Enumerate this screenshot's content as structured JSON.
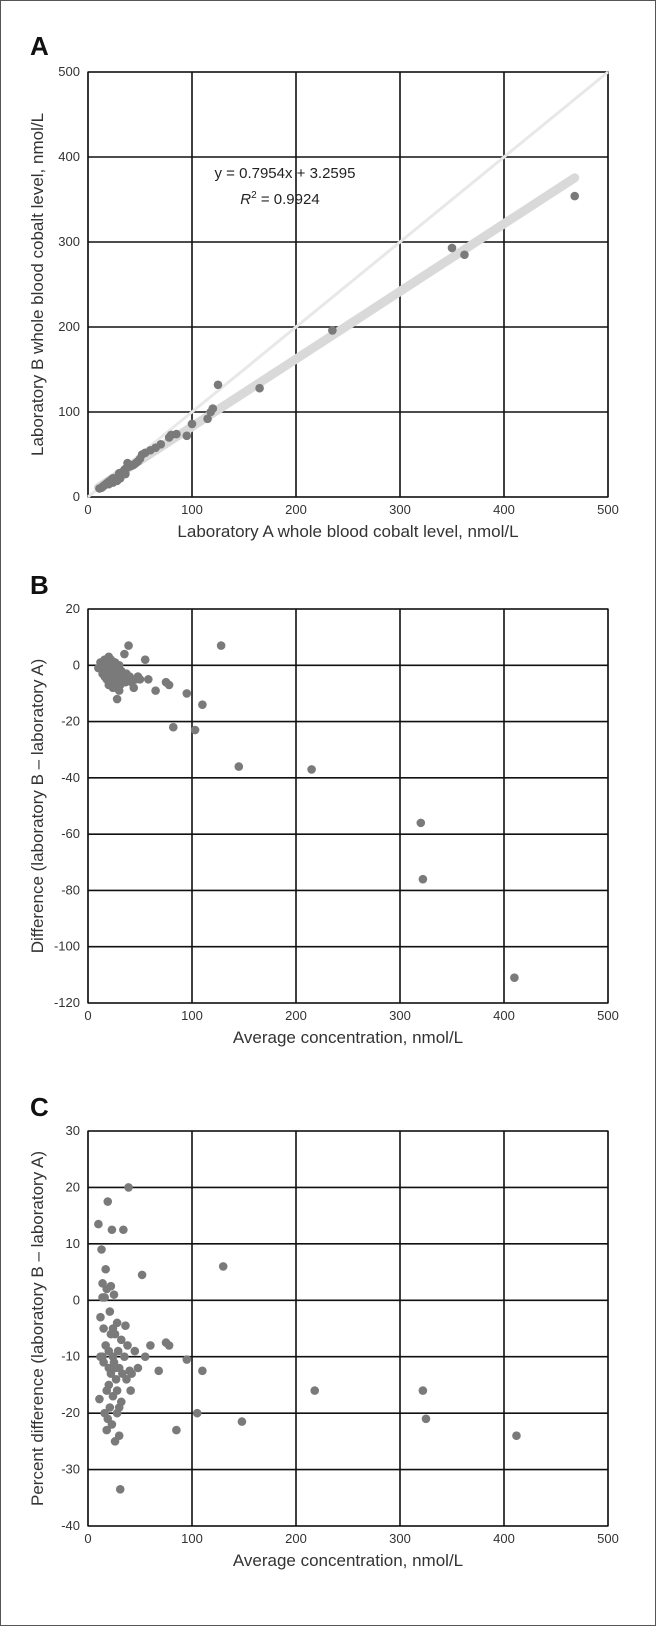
{
  "chart_data": [
    {
      "panel": "A",
      "type": "scatter",
      "xlabel": "Laboratory A whole blood cobalt level, nmol/L",
      "ylabel": "Laboratory B whole blood cobalt level, nmol/L",
      "xlim": [
        0,
        500
      ],
      "ylim": [
        0,
        500
      ],
      "xticks": [
        0,
        100,
        200,
        300,
        400,
        500
      ],
      "yticks": [
        0,
        100,
        200,
        300,
        400,
        500
      ],
      "grid": true,
      "annotation": {
        "equation": "y = 0.7954x + 3.2595",
        "r2_label": "R",
        "r2_sup": "2",
        "r2_value": " = 0.9924"
      },
      "identity_line": [
        [
          0,
          0
        ],
        [
          500,
          500
        ]
      ],
      "fit_line": {
        "slope": 0.7954,
        "intercept": 3.2595,
        "x_range": [
          10,
          468
        ]
      },
      "points": [
        [
          11,
          10
        ],
        [
          13,
          11
        ],
        [
          14,
          12
        ],
        [
          15,
          13
        ],
        [
          16,
          14
        ],
        [
          17,
          15
        ],
        [
          18,
          16
        ],
        [
          19,
          17
        ],
        [
          20,
          18
        ],
        [
          21,
          18
        ],
        [
          22,
          20
        ],
        [
          23,
          20
        ],
        [
          25,
          19
        ],
        [
          26,
          21
        ],
        [
          27,
          22
        ],
        [
          28,
          23
        ],
        [
          29,
          24
        ],
        [
          30,
          25
        ],
        [
          31,
          26
        ],
        [
          33,
          28
        ],
        [
          34,
          30
        ],
        [
          35,
          32
        ],
        [
          36,
          33
        ],
        [
          37,
          34
        ],
        [
          38,
          40
        ],
        [
          40,
          36
        ],
        [
          42,
          37
        ],
        [
          44,
          38
        ],
        [
          46,
          40
        ],
        [
          48,
          42
        ],
        [
          50,
          45
        ],
        [
          52,
          50
        ],
        [
          55,
          52
        ],
        [
          60,
          55
        ],
        [
          65,
          58
        ],
        [
          70,
          62
        ],
        [
          78,
          70
        ],
        [
          80,
          73
        ],
        [
          85,
          74
        ],
        [
          95,
          72
        ],
        [
          100,
          86
        ],
        [
          115,
          92
        ],
        [
          118,
          100
        ],
        [
          120,
          104
        ],
        [
          125,
          132
        ],
        [
          165,
          128
        ],
        [
          235,
          196
        ],
        [
          350,
          293
        ],
        [
          362,
          285
        ],
        [
          468,
          354
        ],
        [
          20,
          15
        ],
        [
          24,
          17
        ],
        [
          28,
          19
        ],
        [
          31,
          22
        ],
        [
          36,
          27
        ],
        [
          24,
          22
        ],
        [
          30,
          28
        ]
      ]
    },
    {
      "panel": "B",
      "type": "scatter",
      "xlabel": "Average concentration, nmol/L",
      "ylabel": "Difference (laboratory B – laboratory A)",
      "xlim": [
        0,
        500
      ],
      "ylim": [
        -120,
        20
      ],
      "xticks": [
        0,
        100,
        200,
        300,
        400,
        500
      ],
      "yticks": [
        -120,
        -100,
        -80,
        -60,
        -40,
        -20,
        0,
        20
      ],
      "grid": true,
      "points": [
        [
          10,
          -1
        ],
        [
          12,
          1
        ],
        [
          14,
          0
        ],
        [
          15,
          -2
        ],
        [
          16,
          2
        ],
        [
          17,
          1
        ],
        [
          18,
          -3
        ],
        [
          19,
          0
        ],
        [
          20,
          3
        ],
        [
          21,
          -1
        ],
        [
          22,
          2
        ],
        [
          23,
          -4
        ],
        [
          24,
          0
        ],
        [
          25,
          -2
        ],
        [
          26,
          1
        ],
        [
          27,
          -5
        ],
        [
          28,
          -3
        ],
        [
          29,
          -6
        ],
        [
          30,
          0
        ],
        [
          31,
          -7
        ],
        [
          32,
          -2
        ],
        [
          33,
          -5
        ],
        [
          34,
          -4
        ],
        [
          35,
          4
        ],
        [
          36,
          -6
        ],
        [
          37,
          -3
        ],
        [
          38,
          -5
        ],
        [
          39,
          7
        ],
        [
          40,
          -4
        ],
        [
          42,
          -6
        ],
        [
          44,
          -8
        ],
        [
          46,
          -5
        ],
        [
          48,
          -4
        ],
        [
          50,
          -5
        ],
        [
          55,
          2
        ],
        [
          58,
          -5
        ],
        [
          65,
          -9
        ],
        [
          75,
          -6
        ],
        [
          78,
          -7
        ],
        [
          82,
          -22
        ],
        [
          95,
          -10
        ],
        [
          103,
          -23
        ],
        [
          110,
          -14
        ],
        [
          128,
          7
        ],
        [
          145,
          -36
        ],
        [
          215,
          -37
        ],
        [
          320,
          -56
        ],
        [
          322,
          -76
        ],
        [
          410,
          -111
        ],
        [
          18,
          -5
        ],
        [
          20,
          -7
        ],
        [
          22,
          -6
        ],
        [
          24,
          -8
        ],
        [
          26,
          -7
        ],
        [
          28,
          -12
        ],
        [
          30,
          -9
        ],
        [
          14,
          -3
        ],
        [
          16,
          -4
        ]
      ]
    },
    {
      "panel": "C",
      "type": "scatter",
      "xlabel": "Average concentration, nmol/L",
      "ylabel": "Percent difference (laboratory B – laboratory A)",
      "xlim": [
        0,
        500
      ],
      "ylim": [
        -40,
        30
      ],
      "xticks": [
        0,
        100,
        200,
        300,
        400,
        500
      ],
      "yticks": [
        -40,
        -30,
        -20,
        -10,
        0,
        10,
        20,
        30
      ],
      "grid": true,
      "points": [
        [
          10,
          13.5
        ],
        [
          12,
          -3
        ],
        [
          13,
          9
        ],
        [
          14,
          3
        ],
        [
          15,
          -5
        ],
        [
          15,
          -11
        ],
        [
          16,
          0.5
        ],
        [
          17,
          5.5
        ],
        [
          17,
          -8
        ],
        [
          18,
          2
        ],
        [
          18,
          -16
        ],
        [
          19,
          17.5
        ],
        [
          19,
          -21
        ],
        [
          20,
          -9
        ],
        [
          20,
          -12
        ],
        [
          21,
          -2
        ],
        [
          21,
          -19
        ],
        [
          22,
          2.5
        ],
        [
          22,
          -13
        ],
        [
          23,
          12.5
        ],
        [
          23,
          -22
        ],
        [
          24,
          -5
        ],
        [
          24,
          -17
        ],
        [
          25,
          1
        ],
        [
          25,
          -11
        ],
        [
          26,
          -6
        ],
        [
          26,
          -25
        ],
        [
          27,
          -14
        ],
        [
          28,
          -4
        ],
        [
          28,
          -20
        ],
        [
          29,
          -9
        ],
        [
          30,
          -12
        ],
        [
          30,
          -24
        ],
        [
          31,
          -33.5
        ],
        [
          32,
          -7
        ],
        [
          32,
          -18
        ],
        [
          33,
          -13
        ],
        [
          34,
          12.5
        ],
        [
          35,
          -10
        ],
        [
          36,
          -4.5
        ],
        [
          37,
          -14
        ],
        [
          38,
          -8
        ],
        [
          39,
          20
        ],
        [
          40,
          -12.5
        ],
        [
          41,
          -16
        ],
        [
          42,
          -13
        ],
        [
          45,
          -9
        ],
        [
          48,
          -12
        ],
        [
          52,
          4.5
        ],
        [
          55,
          -10
        ],
        [
          60,
          -8
        ],
        [
          68,
          -12.5
        ],
        [
          75,
          -7.5
        ],
        [
          78,
          -8
        ],
        [
          85,
          -23
        ],
        [
          95,
          -10.5
        ],
        [
          105,
          -20
        ],
        [
          110,
          -12.5
        ],
        [
          130,
          6
        ],
        [
          148,
          -21.5
        ],
        [
          218,
          -16
        ],
        [
          322,
          -16
        ],
        [
          325,
          -21
        ],
        [
          412,
          -24
        ],
        [
          11,
          -17.5
        ],
        [
          14,
          -10
        ],
        [
          16,
          -20
        ],
        [
          18,
          -23
        ],
        [
          20,
          -15
        ],
        [
          22,
          -6
        ],
        [
          24,
          -10
        ],
        [
          26,
          -12
        ],
        [
          28,
          -16
        ],
        [
          30,
          -19
        ],
        [
          12,
          -10
        ],
        [
          14,
          0.5
        ]
      ]
    }
  ],
  "colors": {
    "point": "#7a7a7a",
    "fit_line": "#d9d9d9",
    "identity_line": "#e8e8e8",
    "grid": "#111111"
  }
}
